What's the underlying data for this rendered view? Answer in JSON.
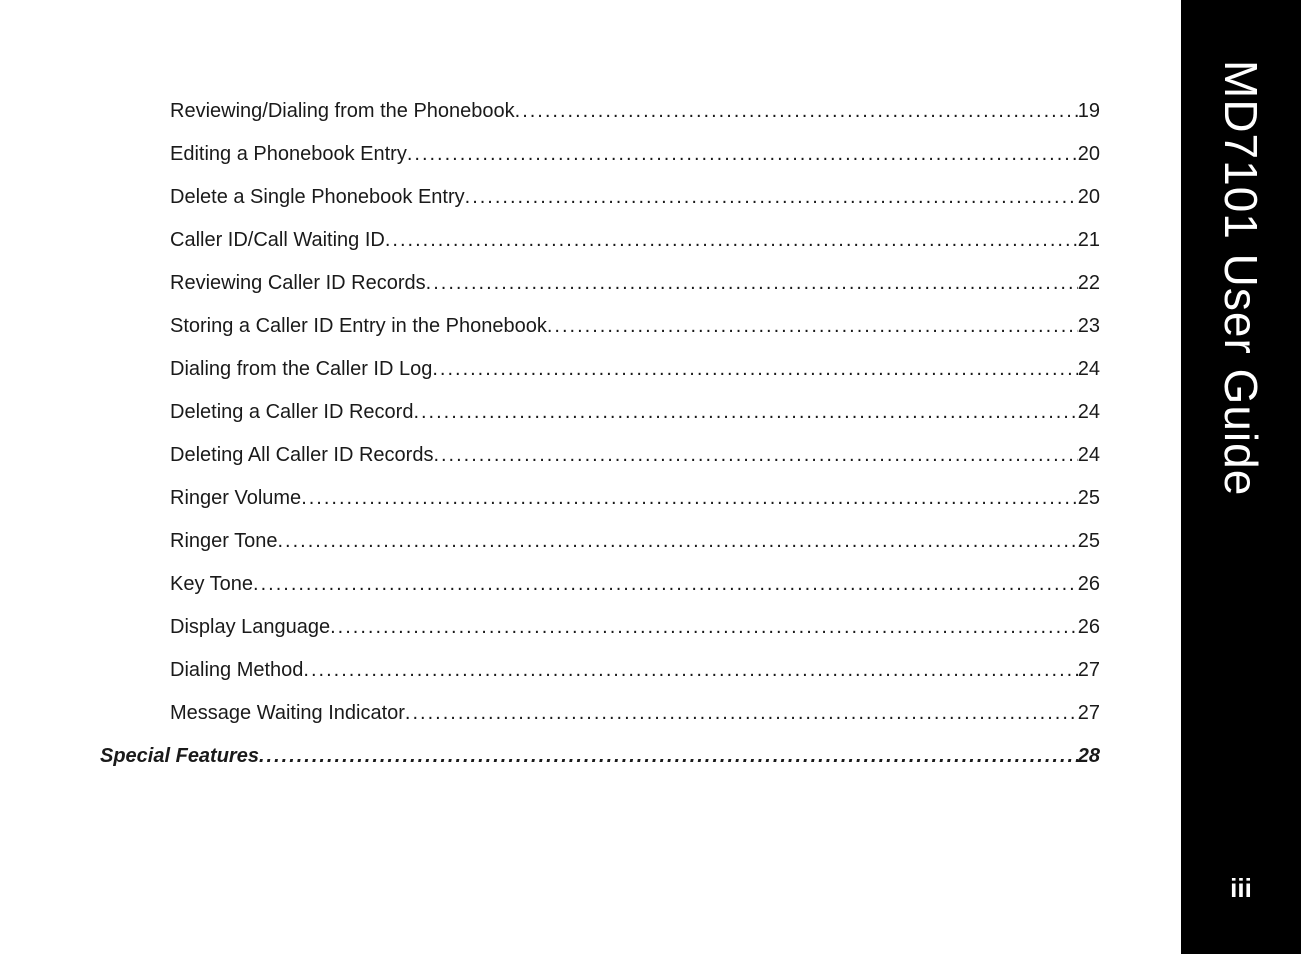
{
  "sidebar": {
    "title": "MD7101 User Guide",
    "page_label": "iii",
    "bg_color": "#000000",
    "text_color": "#ffffff"
  },
  "toc": {
    "text_color": "#1a1a1a",
    "font_size_pt": 15,
    "entries": [
      {
        "level": 2,
        "title": "Reviewing/Dialing from the Phonebook",
        "page": "19"
      },
      {
        "level": 2,
        "title": "Editing a Phonebook Entry",
        "page": "20"
      },
      {
        "level": 2,
        "title": "Delete a Single Phonebook Entry",
        "page": "20"
      },
      {
        "level": 2,
        "title": "Caller ID/Call Waiting ID",
        "page": "21"
      },
      {
        "level": 2,
        "title": "Reviewing Caller ID Records",
        "page": "22"
      },
      {
        "level": 2,
        "title": "Storing a Caller ID Entry in the Phonebook",
        "page": "23"
      },
      {
        "level": 2,
        "title": "Dialing from the Caller ID Log",
        "page": "24"
      },
      {
        "level": 2,
        "title": "Deleting a Caller ID Record",
        "page": "24"
      },
      {
        "level": 2,
        "title": "Deleting All Caller ID Records",
        "page": "24"
      },
      {
        "level": 2,
        "title": "Ringer Volume",
        "page": "25"
      },
      {
        "level": 2,
        "title": "Ringer Tone",
        "page": "25"
      },
      {
        "level": 2,
        "title": "Key Tone",
        "page": "26"
      },
      {
        "level": 2,
        "title": "Display Language",
        "page": "26"
      },
      {
        "level": 2,
        "title": "Dialing Method",
        "page": "27"
      },
      {
        "level": 2,
        "title": "Message Waiting Indicator",
        "page": "27"
      },
      {
        "level": 1,
        "title": "Special Features",
        "page": "28"
      }
    ]
  }
}
